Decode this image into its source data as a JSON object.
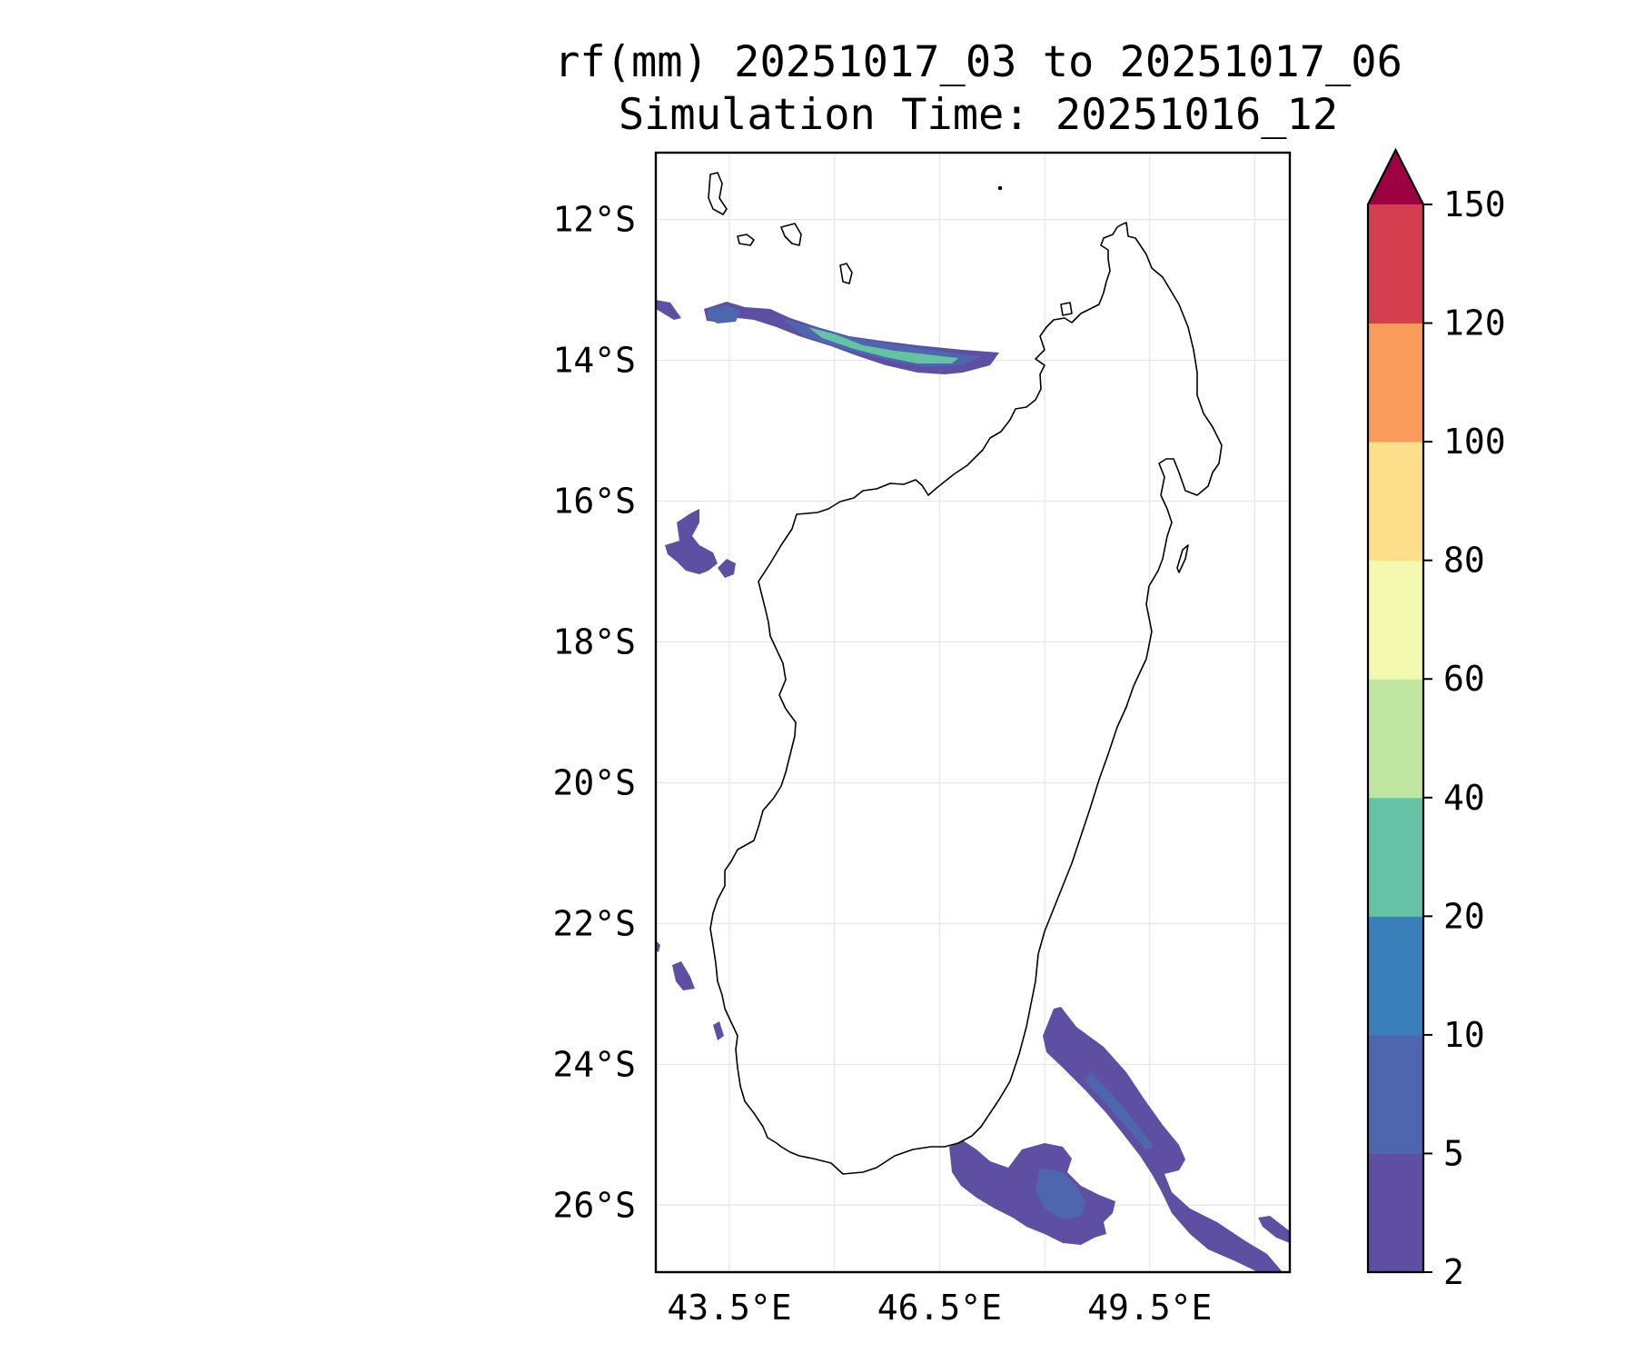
{
  "title": {
    "line1": "rf(mm) 20251017_03 to 20251017_06",
    "line2": "Simulation Time: 20251016_12"
  },
  "map": {
    "lat_range": [
      -26.95,
      -11.05
    ],
    "lon_range": [
      42.45,
      51.5
    ],
    "lat_ticks": [
      {
        "value": -12,
        "label": "12°S"
      },
      {
        "value": -14,
        "label": "14°S"
      },
      {
        "value": -16,
        "label": "16°S"
      },
      {
        "value": -18,
        "label": "18°S"
      },
      {
        "value": -20,
        "label": "20°S"
      },
      {
        "value": -22,
        "label": "22°S"
      },
      {
        "value": -24,
        "label": "24°S"
      },
      {
        "value": -26,
        "label": "26°S"
      }
    ],
    "lon_ticks": [
      {
        "value": 43.5,
        "label": "43.5°E"
      },
      {
        "value": 46.5,
        "label": "46.5°E"
      },
      {
        "value": 49.5,
        "label": "49.5°E"
      }
    ],
    "grid_lons": [
      43.5,
      45.0,
      46.5,
      48.0,
      49.5,
      51.0
    ]
  },
  "colorbar": {
    "levels": [
      "2",
      "5",
      "10",
      "20",
      "40",
      "60",
      "80",
      "100",
      "120",
      "150"
    ],
    "colors": [
      "#5e4fa2",
      "#4d66ae",
      "#3a7fba",
      "#66c2a5",
      "#bfe5a0",
      "#f3f9af",
      "#fddf8b",
      "#f99b5b",
      "#d53e4f"
    ],
    "extend_color": "#9e0142"
  },
  "colors": {
    "rain_5": "#5e4fa2",
    "rain_10": "#4d66ae",
    "rain_20": "#66c2a5",
    "coastline": "#000000",
    "grid": "#e6e6e6"
  }
}
